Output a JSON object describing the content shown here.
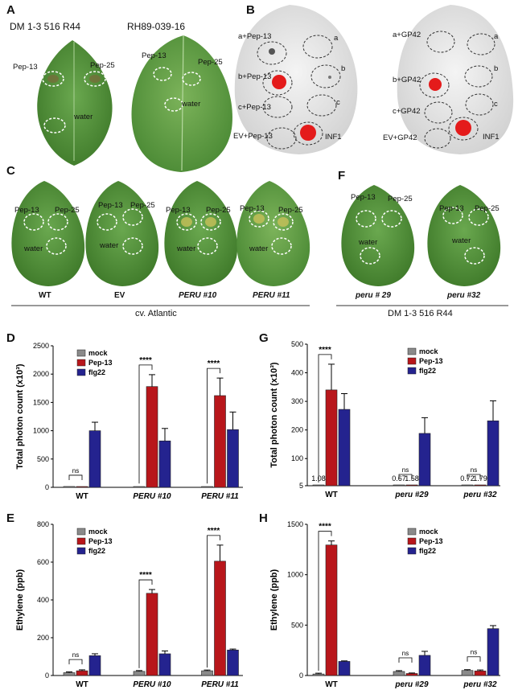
{
  "panels": {
    "A": {
      "letter": "A",
      "leaf_titles": [
        "DM 1-3 516 R44",
        "RH89-039-16"
      ],
      "spot_labels_left": [
        "Pep-13",
        "Pep-25",
        "water"
      ],
      "spot_labels_right": [
        "Pep-13",
        "Pep-25",
        "water"
      ]
    },
    "B": {
      "letter": "B",
      "left_labels": [
        "a+Pep-13",
        "b+Pep-13",
        "c+Pep-13",
        "EV+Pep-13",
        "a",
        "b",
        "c",
        "INF1"
      ],
      "right_labels": [
        "a+GP42",
        "b+GP42",
        "c+GP42",
        "EV+GP42",
        "a",
        "b",
        "c",
        "INF1"
      ]
    },
    "C": {
      "letter": "C",
      "spot_labels": [
        "Pep-13",
        "Pep-25",
        "water"
      ],
      "leaf_names": [
        "WT",
        "EV",
        "PERU #10",
        "PERU #11"
      ],
      "group_label": "cv. Atlantic"
    },
    "F": {
      "letter": "F",
      "spot_labels": [
        "Pep-13",
        "Pep-25",
        "water"
      ],
      "leaf_names": [
        "peru # 29",
        "peru #32"
      ],
      "group_label": "DM 1-3 516 R44"
    }
  },
  "legend": {
    "items": [
      "mock",
      "Pep-13",
      "flg22"
    ],
    "colors": [
      "#8a8a8a",
      "#b8161b",
      "#24238f"
    ]
  },
  "chart_data": [
    {
      "panel": "D",
      "type": "bar",
      "categories": [
        "WT",
        "PERU #10",
        "PERU #11"
      ],
      "series": [
        {
          "name": "mock",
          "values": [
            15,
            10,
            10
          ],
          "err": [
            0,
            0,
            0
          ]
        },
        {
          "name": "Pep-13",
          "values": [
            10,
            1780,
            1620
          ],
          "err": [
            0,
            210,
            310
          ]
        },
        {
          "name": "flg22",
          "values": [
            1000,
            820,
            1020
          ],
          "err": [
            150,
            220,
            310
          ]
        }
      ],
      "ylabel": "Total photon count (x10³)",
      "ylim": [
        0,
        2500
      ],
      "yticks": [
        "0",
        "500",
        "1000",
        "1500",
        "2000",
        "2500"
      ],
      "annotations": [
        "ns",
        "****",
        "****"
      ]
    },
    {
      "panel": "G",
      "type": "bar",
      "categories": [
        "WT",
        "peru #29",
        "peru #32"
      ],
      "series": [
        {
          "name": "mock",
          "values": [
            1.08,
            0.67,
            0.72
          ],
          "err": [
            0,
            0,
            0
          ]
        },
        {
          "name": "Pep-13",
          "values": [
            340,
            1.58,
            1.79
          ],
          "err": [
            90,
            0,
            0
          ]
        },
        {
          "name": "flg22",
          "values": [
            272,
            188,
            232
          ],
          "err": [
            55,
            55,
            70
          ]
        }
      ],
      "ylabel": "Total photon count (x10³)",
      "ylim": [
        5,
        500
      ],
      "yticks": [
        "5",
        "100",
        "200",
        "300",
        "400",
        "500"
      ],
      "value_labels": [
        "1.08",
        "0.67",
        "1.58",
        "0.72",
        "1.79"
      ],
      "annotations": [
        "****",
        "ns",
        "ns"
      ]
    },
    {
      "panel": "E",
      "type": "bar",
      "categories": [
        "WT",
        "PERU #10",
        "PERU #11"
      ],
      "series": [
        {
          "name": "mock",
          "values": [
            15,
            22,
            25
          ],
          "err": [
            4,
            4,
            4
          ]
        },
        {
          "name": "Pep-13",
          "values": [
            25,
            435,
            605
          ],
          "err": [
            5,
            20,
            85
          ]
        },
        {
          "name": "flg22",
          "values": [
            105,
            115,
            135
          ],
          "err": [
            10,
            15,
            5
          ]
        }
      ],
      "ylabel": "Ethylene (ppb)",
      "ylim": [
        0,
        800
      ],
      "yticks": [
        "0",
        "200",
        "400",
        "600",
        "800"
      ],
      "annotations": [
        "ns",
        "****",
        "****"
      ]
    },
    {
      "panel": "H",
      "type": "bar",
      "categories": [
        "WT",
        "peru #29",
        "peru #32"
      ],
      "series": [
        {
          "name": "mock",
          "values": [
            15,
            40,
            50
          ],
          "err": [
            8,
            8,
            8
          ]
        },
        {
          "name": "Pep-13",
          "values": [
            1295,
            20,
            45
          ],
          "err": [
            40,
            5,
            10
          ]
        },
        {
          "name": "flg22",
          "values": [
            140,
            200,
            465
          ],
          "err": [
            5,
            40,
            30
          ]
        }
      ],
      "ylabel": "Ethylene (ppb)",
      "ylim": [
        0,
        1500
      ],
      "yticks": [
        "0",
        "500",
        "1000",
        "1500"
      ],
      "annotations": [
        "****",
        "ns",
        "ns"
      ]
    }
  ]
}
